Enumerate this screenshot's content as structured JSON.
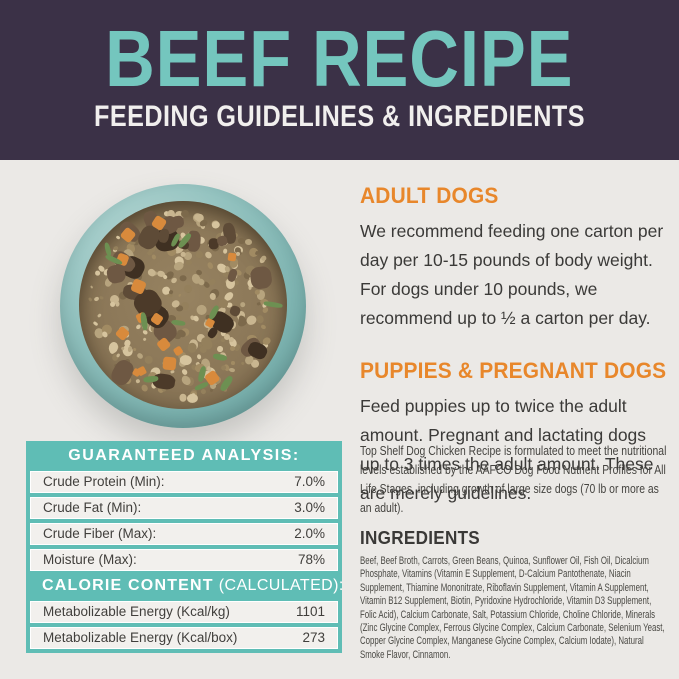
{
  "header": {
    "title": "BEEF RECIPE",
    "subtitle": "FEEDING GUIDELINES & INGREDIENTS"
  },
  "colors": {
    "banner_bg": "#3b3147",
    "title_teal": "#74c6be",
    "accent_orange": "#e8872b",
    "table_teal": "#5fbdb5",
    "page_bg": "#ebe9e6"
  },
  "feeding": {
    "adult": {
      "heading": "ADULT DOGS",
      "body": "We recommend feeding one carton per day per 10-15 pounds of body weight. For dogs under 10 pounds, we recommend up to ½ a carton per day."
    },
    "puppies": {
      "heading": "PUPPIES & PREGNANT DOGS",
      "body": "Feed puppies up to twice the adult amount. Pregnant and lactating dogs up to 3 times the adult amount. These are merely guidelines."
    }
  },
  "guaranteed_analysis": {
    "heading": "GUARANTEED ANALYSIS:",
    "rows": [
      {
        "label": "Crude Protein (Min):",
        "value": "7.0%"
      },
      {
        "label": "Crude Fat (Min):",
        "value": "3.0%"
      },
      {
        "label": "Crude Fiber (Max):",
        "value": "2.0%"
      },
      {
        "label": "Moisture (Max):",
        "value": "78%"
      }
    ]
  },
  "calorie_content": {
    "heading_bold": "CALORIE CONTENT",
    "heading_tail": "(CALCULATED):",
    "rows": [
      {
        "label": "Metabolizable Energy (Kcal/kg)",
        "value": "1101"
      },
      {
        "label": "Metabolizable Energy (Kcal/box)",
        "value": "273"
      }
    ]
  },
  "aafco_note": "Top Shelf Dog Chicken Recipe is formulated to meet the nutritional levels established by the AAFCO Dog Food Nutrient Profiles for All Life Stages, including growth of large size dogs (70 lb or more as an adult).",
  "ingredients": {
    "heading": "INGREDIENTS",
    "body": "Beef, Beef Broth, Carrots, Green Beans, Quinoa, Sunflower Oil, Fish Oil, Dicalcium Phosphate, Vitamins (Vitamin E Supplement, D-Calcium Pantothenate, Niacin Supplement, Thiamine Mononitrate, Riboflavin Supplement, Vitamin A Supplement, Vitamin B12 Supplement, Biotin, Pyridoxine Hydrochloride, Vitamin D3 Supplement, Folic Acid), Calcium Carbonate, Salt, Potassium Chloride, Choline Chloride, Minerals (Zinc Glycine Complex, Ferrous Glycine Complex, Calcium Carbonate, Selenium Yeast, Copper Glycine Complex, Manganese Glycine Complex, Calcium Iodate), Natural Smoke Flavor, Cinnamon."
  }
}
